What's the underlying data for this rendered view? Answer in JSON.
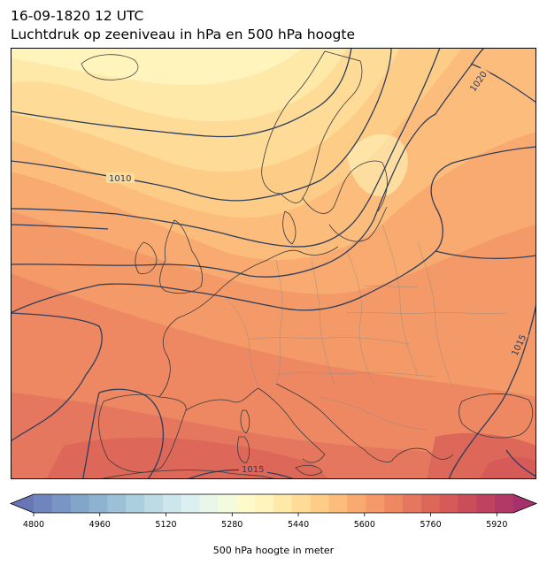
{
  "header": {
    "datetime": "16-09-1820 12 UTC",
    "title": "Luchtdruk op zeeniveau in hPa en 500 hPa hoogte"
  },
  "map": {
    "region": "Europe",
    "filled_field": "500 hPa geopotential height (m)",
    "contour_field": "mean sea level pressure (hPa)",
    "isobar_labels": [
      "1010",
      "1020",
      "1015",
      "1015"
    ],
    "contour_color": "#2e3d5c",
    "coastline_color": "#3a3a3a",
    "border_color": "#8a8a8a"
  },
  "colorbar": {
    "label": "500 hPa hoogte in meter",
    "ticks": [
      "4800",
      "4960",
      "5120",
      "5280",
      "5440",
      "5600",
      "5760",
      "5920"
    ],
    "min": 4800,
    "max": 5960,
    "step": 40,
    "extend": "both",
    "colors": [
      "#6975b4",
      "#7085bd",
      "#7895c4",
      "#82a5ca",
      "#8eb3d0",
      "#9cc1d6",
      "#abcfdd",
      "#bcdbe4",
      "#cde6ec",
      "#dcf0f1",
      "#e9f6ea",
      "#f4fadc",
      "#fdfbcc",
      "#fff4bb",
      "#ffe9a9",
      "#fedc98",
      "#fdcc87",
      "#fcbc7b",
      "#f8aa70",
      "#f39a68",
      "#ed8863",
      "#e5775e",
      "#dd6758",
      "#d55a58",
      "#ca4d5a",
      "#bf4260",
      "#b23966",
      "#a5306c"
    ]
  }
}
